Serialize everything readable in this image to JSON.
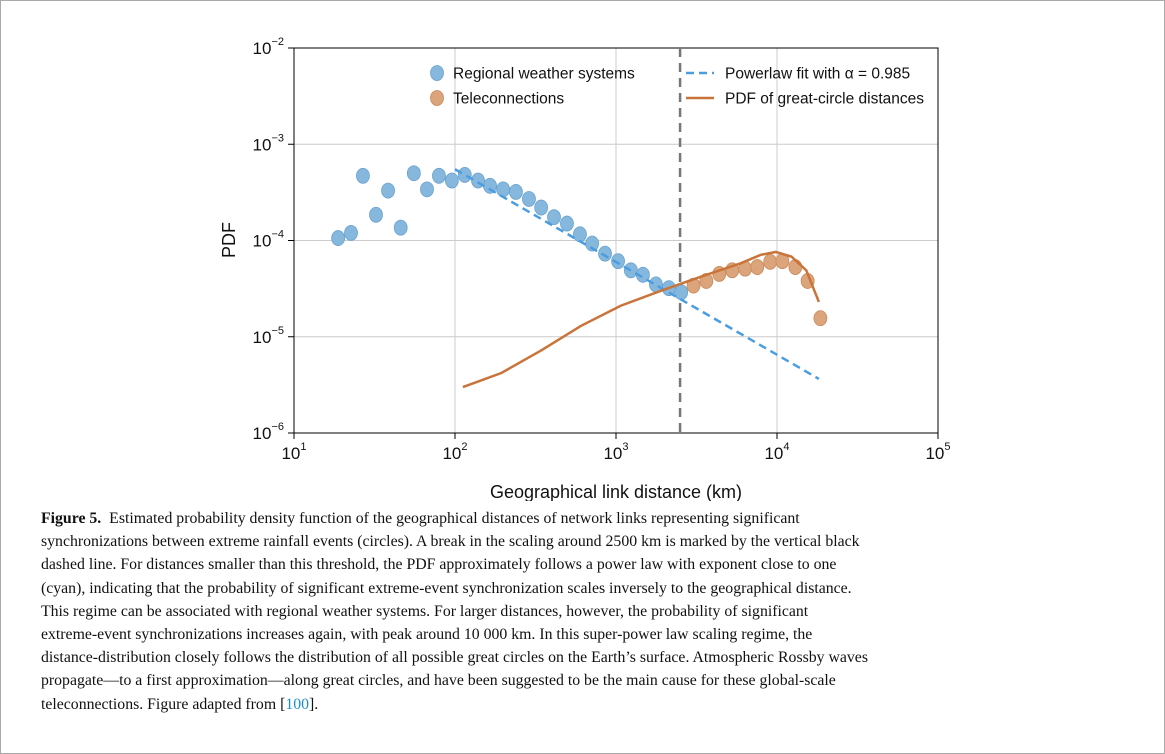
{
  "chart_data": {
    "type": "scatter",
    "xlabel": "Geographical link distance (km)",
    "ylabel": "PDF",
    "xscale": "log",
    "yscale": "log",
    "xlim": [
      10,
      100000
    ],
    "ylim": [
      1e-06,
      0.01
    ],
    "xticks": [
      {
        "value": 10,
        "label": "10",
        "exponent": "1"
      },
      {
        "value": 100,
        "label": "10",
        "exponent": "2"
      },
      {
        "value": 1000,
        "label": "10",
        "exponent": "3"
      },
      {
        "value": 10000,
        "label": "10",
        "exponent": "4"
      },
      {
        "value": 100000,
        "label": "10",
        "exponent": "5"
      }
    ],
    "yticks": [
      {
        "value": 1e-06,
        "label": "10",
        "exponent": "−6"
      },
      {
        "value": 1e-05,
        "label": "10",
        "exponent": "−5"
      },
      {
        "value": 0.0001,
        "label": "10",
        "exponent": "−4"
      },
      {
        "value": 0.001,
        "label": "10",
        "exponent": "−3"
      },
      {
        "value": 0.01,
        "label": "10",
        "exponent": "−2"
      }
    ],
    "grid": true,
    "vline": {
      "value": 2500,
      "color": "#777777"
    },
    "series": [
      {
        "name": "Regional weather systems",
        "type": "scatter",
        "color": "#86b8de",
        "edge": "#6aa2cf",
        "x": [
          18.8,
          22.6,
          26.8,
          32.3,
          38.4,
          46,
          55.5,
          67,
          79.5,
          95.6,
          115,
          139,
          165,
          199,
          239,
          288,
          343,
          412,
          496,
          597,
          711,
          855,
          1030,
          1237,
          1470,
          1770,
          2130,
          2540
        ],
        "values": [
          0.000106,
          0.00012,
          0.00047,
          0.000185,
          0.00033,
          0.000136,
          0.0005,
          0.00034,
          0.00047,
          0.00042,
          0.00048,
          0.00042,
          0.00037,
          0.00034,
          0.00032,
          0.00027,
          0.00022,
          0.000175,
          0.00015,
          0.000116,
          9.3e-05,
          7.3e-05,
          6.1e-05,
          4.9e-05,
          4.4e-05,
          3.5e-05,
          3.2e-05,
          2.9e-05
        ]
      },
      {
        "name": "Teleconnections",
        "type": "scatter",
        "color": "#dba47a",
        "edge": "#c98a5a",
        "x": [
          3030,
          3640,
          4380,
          5270,
          6340,
          7540,
          9070,
          10800,
          13000,
          15500,
          18600
        ],
        "values": [
          3.4e-05,
          3.8e-05,
          4.5e-05,
          4.9e-05,
          5.1e-05,
          5.3e-05,
          6e-05,
          6.1e-05,
          5.3e-05,
          3.8e-05,
          1.56e-05
        ]
      },
      {
        "name": "Powerlaw fit with α = 0.985",
        "type": "line",
        "dashed": true,
        "color": "#4a9de0",
        "x": [
          100,
          18200
        ],
        "values": [
          0.00055,
          3.65e-06
        ]
      },
      {
        "name": "PDF of great-circle distances",
        "type": "line",
        "dashed": false,
        "color": "#c8743a",
        "x": [
          112,
          194,
          343,
          607,
          1070,
          1900,
          3350,
          5940,
          7930,
          9840,
          12300,
          15200,
          18200
        ],
        "values": [
          3e-06,
          4.2e-06,
          7.2e-06,
          1.3e-05,
          2.1e-05,
          3e-05,
          4.2e-05,
          5.8e-05,
          7.1e-05,
          7.6e-05,
          6.8e-05,
          4.9e-05,
          2.3e-05
        ]
      }
    ]
  },
  "caption": {
    "label": "Figure 5.",
    "lines": [
      "Estimated probability density function of the geographical distances of network links representing significant",
      "synchronizations between extreme rainfall events (circles). A break in the scaling around 2500 km is marked by the vertical black",
      "dashed line. For distances smaller than this threshold, the PDF approximately follows a power law with exponent close to one",
      "(cyan), indicating that the probability of significant extreme-event synchronization scales inversely to the geographical distance.",
      "This regime can be associated with regional weather systems. For larger distances, however, the probability of significant",
      "extreme-event synchronizations increases again, with peak around 10 000 km. In this super-power law scaling regime, the",
      "distance-distribution closely follows the distribution of all possible great circles on the Earth’s surface. Atmospheric Rossby waves",
      "propagate—to a first approximation—along great circles, and have been suggested to be the main cause for these global-scale",
      "teleconnections. Figure adapted from ["
    ],
    "ref": "100",
    "ref_after": "]."
  }
}
